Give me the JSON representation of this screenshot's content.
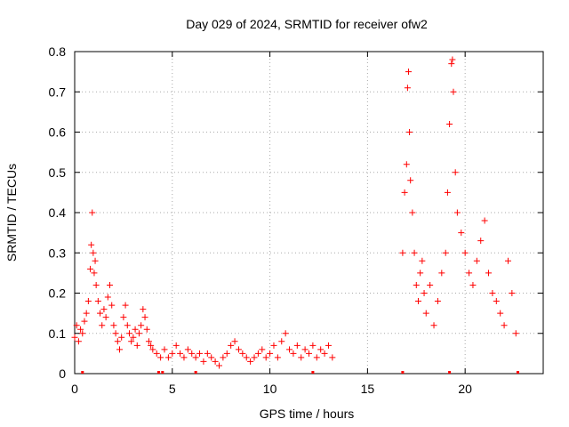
{
  "chart_data": {
    "type": "scatter",
    "title": "Day 029 of 2024, SRMTID for receiver ofw2",
    "xlabel": "GPS time / hours",
    "ylabel": "SRMTID / TECUs",
    "xlim": [
      0,
      24
    ],
    "ylim": [
      0,
      0.8
    ],
    "xticks": [
      0,
      5,
      10,
      15,
      20
    ],
    "xtick_labels": [
      "0",
      "5",
      "10",
      "15",
      "20"
    ],
    "yticks": [
      0,
      0.1,
      0.2,
      0.3,
      0.4,
      0.5,
      0.6,
      0.7,
      0.8
    ],
    "ytick_labels": [
      "0",
      "0.1",
      "0.2",
      "0.3",
      "0.4",
      "0.5",
      "0.6",
      "0.7",
      "0.8"
    ],
    "grid": true,
    "marker": "+",
    "color": "#ff0000",
    "series": [
      {
        "name": "SRMTID",
        "points": [
          [
            0.0,
            0.09
          ],
          [
            0.1,
            0.12
          ],
          [
            0.2,
            0.08
          ],
          [
            0.3,
            0.11
          ],
          [
            0.4,
            0.1
          ],
          [
            0.5,
            0.13
          ],
          [
            0.6,
            0.15
          ],
          [
            0.7,
            0.18
          ],
          [
            0.8,
            0.26
          ],
          [
            0.85,
            0.32
          ],
          [
            0.9,
            0.4
          ],
          [
            0.95,
            0.3
          ],
          [
            1.0,
            0.25
          ],
          [
            1.05,
            0.28
          ],
          [
            1.1,
            0.22
          ],
          [
            1.2,
            0.18
          ],
          [
            1.3,
            0.15
          ],
          [
            1.4,
            0.12
          ],
          [
            1.5,
            0.16
          ],
          [
            1.6,
            0.14
          ],
          [
            1.7,
            0.19
          ],
          [
            1.8,
            0.22
          ],
          [
            1.9,
            0.17
          ],
          [
            2.0,
            0.12
          ],
          [
            2.1,
            0.1
          ],
          [
            2.2,
            0.08
          ],
          [
            2.3,
            0.06
          ],
          [
            2.4,
            0.09
          ],
          [
            2.5,
            0.14
          ],
          [
            2.6,
            0.17
          ],
          [
            2.7,
            0.12
          ],
          [
            2.8,
            0.1
          ],
          [
            2.9,
            0.08
          ],
          [
            3.0,
            0.09
          ],
          [
            3.1,
            0.11
          ],
          [
            3.2,
            0.07
          ],
          [
            3.3,
            0.1
          ],
          [
            3.4,
            0.12
          ],
          [
            3.5,
            0.16
          ],
          [
            3.6,
            0.14
          ],
          [
            3.7,
            0.11
          ],
          [
            3.8,
            0.08
          ],
          [
            3.9,
            0.07
          ],
          [
            4.0,
            0.06
          ],
          [
            4.2,
            0.05
          ],
          [
            4.4,
            0.04
          ],
          [
            4.6,
            0.06
          ],
          [
            4.8,
            0.04
          ],
          [
            5.0,
            0.05
          ],
          [
            5.2,
            0.07
          ],
          [
            5.4,
            0.05
          ],
          [
            5.6,
            0.04
          ],
          [
            5.8,
            0.06
          ],
          [
            6.0,
            0.05
          ],
          [
            6.2,
            0.04
          ],
          [
            6.4,
            0.05
          ],
          [
            6.6,
            0.03
          ],
          [
            6.8,
            0.05
          ],
          [
            7.0,
            0.04
          ],
          [
            7.2,
            0.03
          ],
          [
            7.4,
            0.02
          ],
          [
            7.6,
            0.04
          ],
          [
            7.8,
            0.05
          ],
          [
            8.0,
            0.07
          ],
          [
            8.2,
            0.08
          ],
          [
            8.4,
            0.06
          ],
          [
            8.6,
            0.05
          ],
          [
            8.8,
            0.04
          ],
          [
            9.0,
            0.03
          ],
          [
            9.2,
            0.04
          ],
          [
            9.4,
            0.05
          ],
          [
            9.6,
            0.06
          ],
          [
            9.8,
            0.04
          ],
          [
            10.0,
            0.05
          ],
          [
            10.2,
            0.07
          ],
          [
            10.4,
            0.04
          ],
          [
            10.6,
            0.08
          ],
          [
            10.8,
            0.1
          ],
          [
            11.0,
            0.06
          ],
          [
            11.2,
            0.05
          ],
          [
            11.4,
            0.07
          ],
          [
            11.6,
            0.04
          ],
          [
            11.8,
            0.06
          ],
          [
            12.0,
            0.05
          ],
          [
            12.2,
            0.07
          ],
          [
            12.4,
            0.04
          ],
          [
            12.6,
            0.06
          ],
          [
            12.8,
            0.05
          ],
          [
            13.0,
            0.07
          ],
          [
            13.2,
            0.04
          ],
          [
            16.8,
            0.3
          ],
          [
            16.9,
            0.45
          ],
          [
            17.0,
            0.52
          ],
          [
            17.05,
            0.71
          ],
          [
            17.1,
            0.75
          ],
          [
            17.15,
            0.6
          ],
          [
            17.2,
            0.48
          ],
          [
            17.3,
            0.4
          ],
          [
            17.4,
            0.3
          ],
          [
            17.5,
            0.22
          ],
          [
            17.6,
            0.18
          ],
          [
            17.7,
            0.25
          ],
          [
            17.8,
            0.28
          ],
          [
            17.9,
            0.2
          ],
          [
            18.0,
            0.15
          ],
          [
            18.2,
            0.22
          ],
          [
            18.4,
            0.12
          ],
          [
            18.6,
            0.18
          ],
          [
            18.8,
            0.25
          ],
          [
            19.0,
            0.3
          ],
          [
            19.1,
            0.45
          ],
          [
            19.2,
            0.62
          ],
          [
            19.3,
            0.77
          ],
          [
            19.35,
            0.78
          ],
          [
            19.4,
            0.7
          ],
          [
            19.5,
            0.5
          ],
          [
            19.6,
            0.4
          ],
          [
            19.8,
            0.35
          ],
          [
            20.0,
            0.3
          ],
          [
            20.2,
            0.25
          ],
          [
            20.4,
            0.22
          ],
          [
            20.6,
            0.28
          ],
          [
            20.8,
            0.33
          ],
          [
            21.0,
            0.38
          ],
          [
            21.2,
            0.25
          ],
          [
            21.4,
            0.2
          ],
          [
            21.6,
            0.18
          ],
          [
            21.8,
            0.15
          ],
          [
            22.0,
            0.12
          ],
          [
            22.2,
            0.28
          ],
          [
            22.4,
            0.2
          ],
          [
            22.6,
            0.1
          ]
        ]
      }
    ],
    "zero_markers_x": [
      0.4,
      4.3,
      4.5,
      6.2,
      12.2,
      16.8,
      19.2,
      22.7
    ]
  }
}
